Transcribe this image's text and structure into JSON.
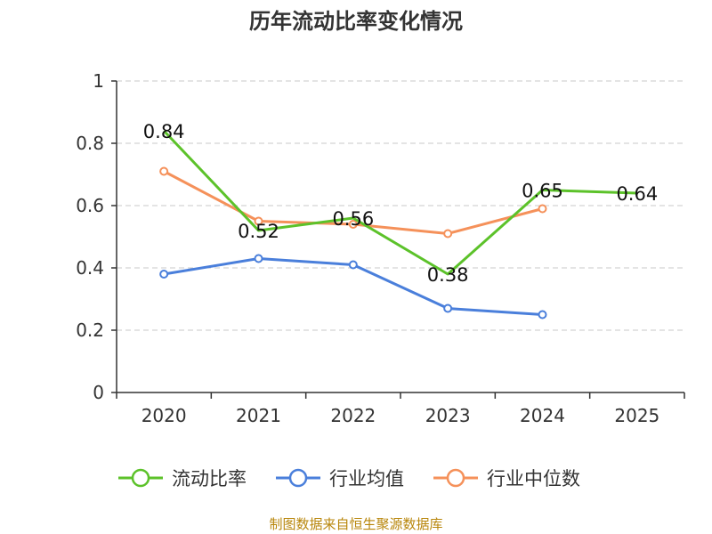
{
  "chart_data": {
    "type": "line",
    "title": "历年流动比率变化情况",
    "categories": [
      "2020",
      "2021",
      "2022",
      "2023",
      "2024",
      "2025"
    ],
    "ylim": [
      0,
      1
    ],
    "yticks": [
      0,
      0.2,
      0.4,
      0.6,
      0.8,
      1
    ],
    "ytick_labels": [
      "0",
      "0.2",
      "0.4",
      "0.6",
      "0.8",
      "1"
    ],
    "grid": true,
    "legend_position": "bottom",
    "series": [
      {
        "name": "流动比率",
        "color": "#5cc22a",
        "values": [
          0.84,
          0.52,
          0.56,
          0.38,
          0.65,
          0.64
        ],
        "labels": [
          "0.84",
          "0.52",
          "0.56",
          "0.38",
          "0.65",
          "0.64"
        ],
        "markers": false
      },
      {
        "name": "行业均值",
        "color": "#4a7fdb",
        "values": [
          0.38,
          0.43,
          0.41,
          0.27,
          0.25,
          null
        ],
        "markers": true
      },
      {
        "name": "行业中位数",
        "color": "#f5915a",
        "values": [
          0.71,
          0.55,
          0.54,
          0.51,
          0.59,
          null
        ],
        "markers": true
      }
    ]
  },
  "footer": {
    "source": "制图数据来自恒生聚源数据库"
  }
}
